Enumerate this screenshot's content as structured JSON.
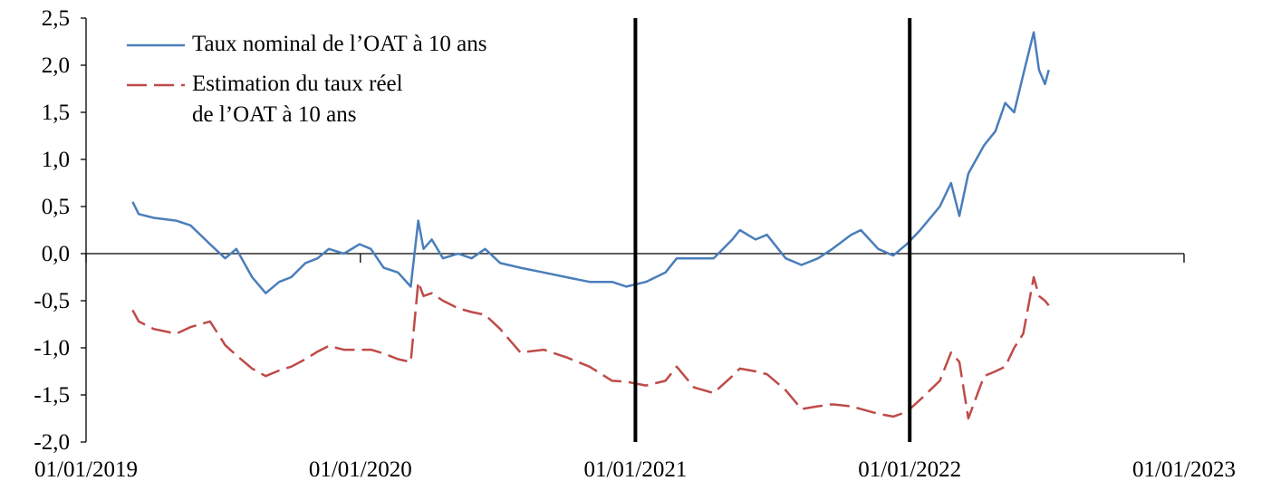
{
  "chart_data": {
    "type": "line",
    "x": [
      "2019-03-04",
      "2019-03-12",
      "2019-04-01",
      "2019-05-01",
      "2019-05-20",
      "2019-06-15",
      "2019-07-05",
      "2019-07-20",
      "2019-08-10",
      "2019-08-28",
      "2019-09-15",
      "2019-10-01",
      "2019-10-20",
      "2019-11-05",
      "2019-11-20",
      "2019-12-10",
      "2019-12-31",
      "2020-01-15",
      "2020-02-01",
      "2020-02-20",
      "2020-03-08",
      "2020-03-18",
      "2020-03-25",
      "2020-04-05",
      "2020-04-20",
      "2020-05-10",
      "2020-05-28",
      "2020-06-15",
      "2020-07-05",
      "2020-08-01",
      "2020-09-01",
      "2020-10-01",
      "2020-11-01",
      "2020-12-01",
      "2020-12-20",
      "2021-01-15",
      "2021-02-10",
      "2021-02-25",
      "2021-03-20",
      "2021-04-15",
      "2021-05-10",
      "2021-05-20",
      "2021-06-10",
      "2021-06-25",
      "2021-07-20",
      "2021-08-10",
      "2021-09-01",
      "2021-09-20",
      "2021-10-15",
      "2021-10-28",
      "2021-11-20",
      "2021-12-10",
      "2021-12-28",
      "2022-01-15",
      "2022-02-10",
      "2022-02-25",
      "2022-03-08",
      "2022-03-20",
      "2022-04-10",
      "2022-04-25",
      "2022-05-08",
      "2022-05-20",
      "2022-06-01",
      "2022-06-15",
      "2022-06-22",
      "2022-06-30",
      "2022-07-05"
    ],
    "series": [
      {
        "name": "Taux nominal de l’OAT à 10 ans",
        "color": "#4a7ebb",
        "dashed": false,
        "values": [
          0.55,
          0.42,
          0.38,
          0.35,
          0.3,
          0.1,
          -0.05,
          0.05,
          -0.25,
          -0.42,
          -0.3,
          -0.25,
          -0.1,
          -0.05,
          0.05,
          0.0,
          0.1,
          0.05,
          -0.15,
          -0.2,
          -0.35,
          0.35,
          0.05,
          0.15,
          -0.05,
          0.0,
          -0.05,
          0.05,
          -0.1,
          -0.15,
          -0.2,
          -0.25,
          -0.3,
          -0.3,
          -0.35,
          -0.3,
          -0.2,
          -0.05,
          -0.05,
          -0.05,
          0.15,
          0.25,
          0.15,
          0.2,
          -0.05,
          -0.12,
          -0.05,
          0.05,
          0.2,
          0.25,
          0.05,
          -0.02,
          0.1,
          0.25,
          0.5,
          0.75,
          0.4,
          0.85,
          1.15,
          1.3,
          1.6,
          1.5,
          1.9,
          2.35,
          1.95,
          1.8,
          1.95
        ]
      },
      {
        "name": "Estimation du taux réel\nde l’OAT à 10 ans",
        "color": "#be4b48",
        "dashed": true,
        "values": [
          -0.6,
          -0.72,
          -0.8,
          -0.85,
          -0.78,
          -0.72,
          -0.97,
          -1.08,
          -1.22,
          -1.3,
          -1.24,
          -1.2,
          -1.12,
          -1.04,
          -0.98,
          -1.02,
          -1.02,
          -1.02,
          -1.06,
          -1.12,
          -1.15,
          -0.3,
          -0.45,
          -0.42,
          -0.5,
          -0.58,
          -0.62,
          -0.65,
          -0.8,
          -1.05,
          -1.02,
          -1.1,
          -1.2,
          -1.35,
          -1.36,
          -1.4,
          -1.35,
          -1.2,
          -1.42,
          -1.48,
          -1.3,
          -1.22,
          -1.25,
          -1.28,
          -1.45,
          -1.65,
          -1.62,
          -1.6,
          -1.62,
          -1.65,
          -1.7,
          -1.73,
          -1.68,
          -1.55,
          -1.35,
          -1.05,
          -1.15,
          -1.75,
          -1.3,
          -1.25,
          -1.2,
          -1.0,
          -0.85,
          -0.25,
          -0.45,
          -0.5,
          -0.55
        ]
      }
    ],
    "xlim": [
      "2019-01-01",
      "2023-01-01"
    ],
    "xticks": [
      {
        "value": "2019-01-01",
        "label": "01/01/2019"
      },
      {
        "value": "2020-01-01",
        "label": "01/01/2020"
      },
      {
        "value": "2021-01-01",
        "label": "01/01/2021"
      },
      {
        "value": "2022-01-01",
        "label": "01/01/2022"
      },
      {
        "value": "2023-01-01",
        "label": "01/01/2023"
      }
    ],
    "ylim": [
      -2.0,
      2.5
    ],
    "yticks": [
      {
        "value": -2.0,
        "label": "-2,0"
      },
      {
        "value": -1.5,
        "label": "-1,5"
      },
      {
        "value": -1.0,
        "label": "-1,0"
      },
      {
        "value": -0.5,
        "label": "-0,5"
      },
      {
        "value": 0.0,
        "label": "0,0"
      },
      {
        "value": 0.5,
        "label": "0,5"
      },
      {
        "value": 1.0,
        "label": "1,0"
      },
      {
        "value": 1.5,
        "label": "1,5"
      },
      {
        "value": 2.0,
        "label": "2,0"
      },
      {
        "value": 2.5,
        "label": "2,5"
      }
    ],
    "vlines": [
      "2021-01-01",
      "2022-01-01"
    ],
    "legend": "upper left",
    "grid": false
  }
}
